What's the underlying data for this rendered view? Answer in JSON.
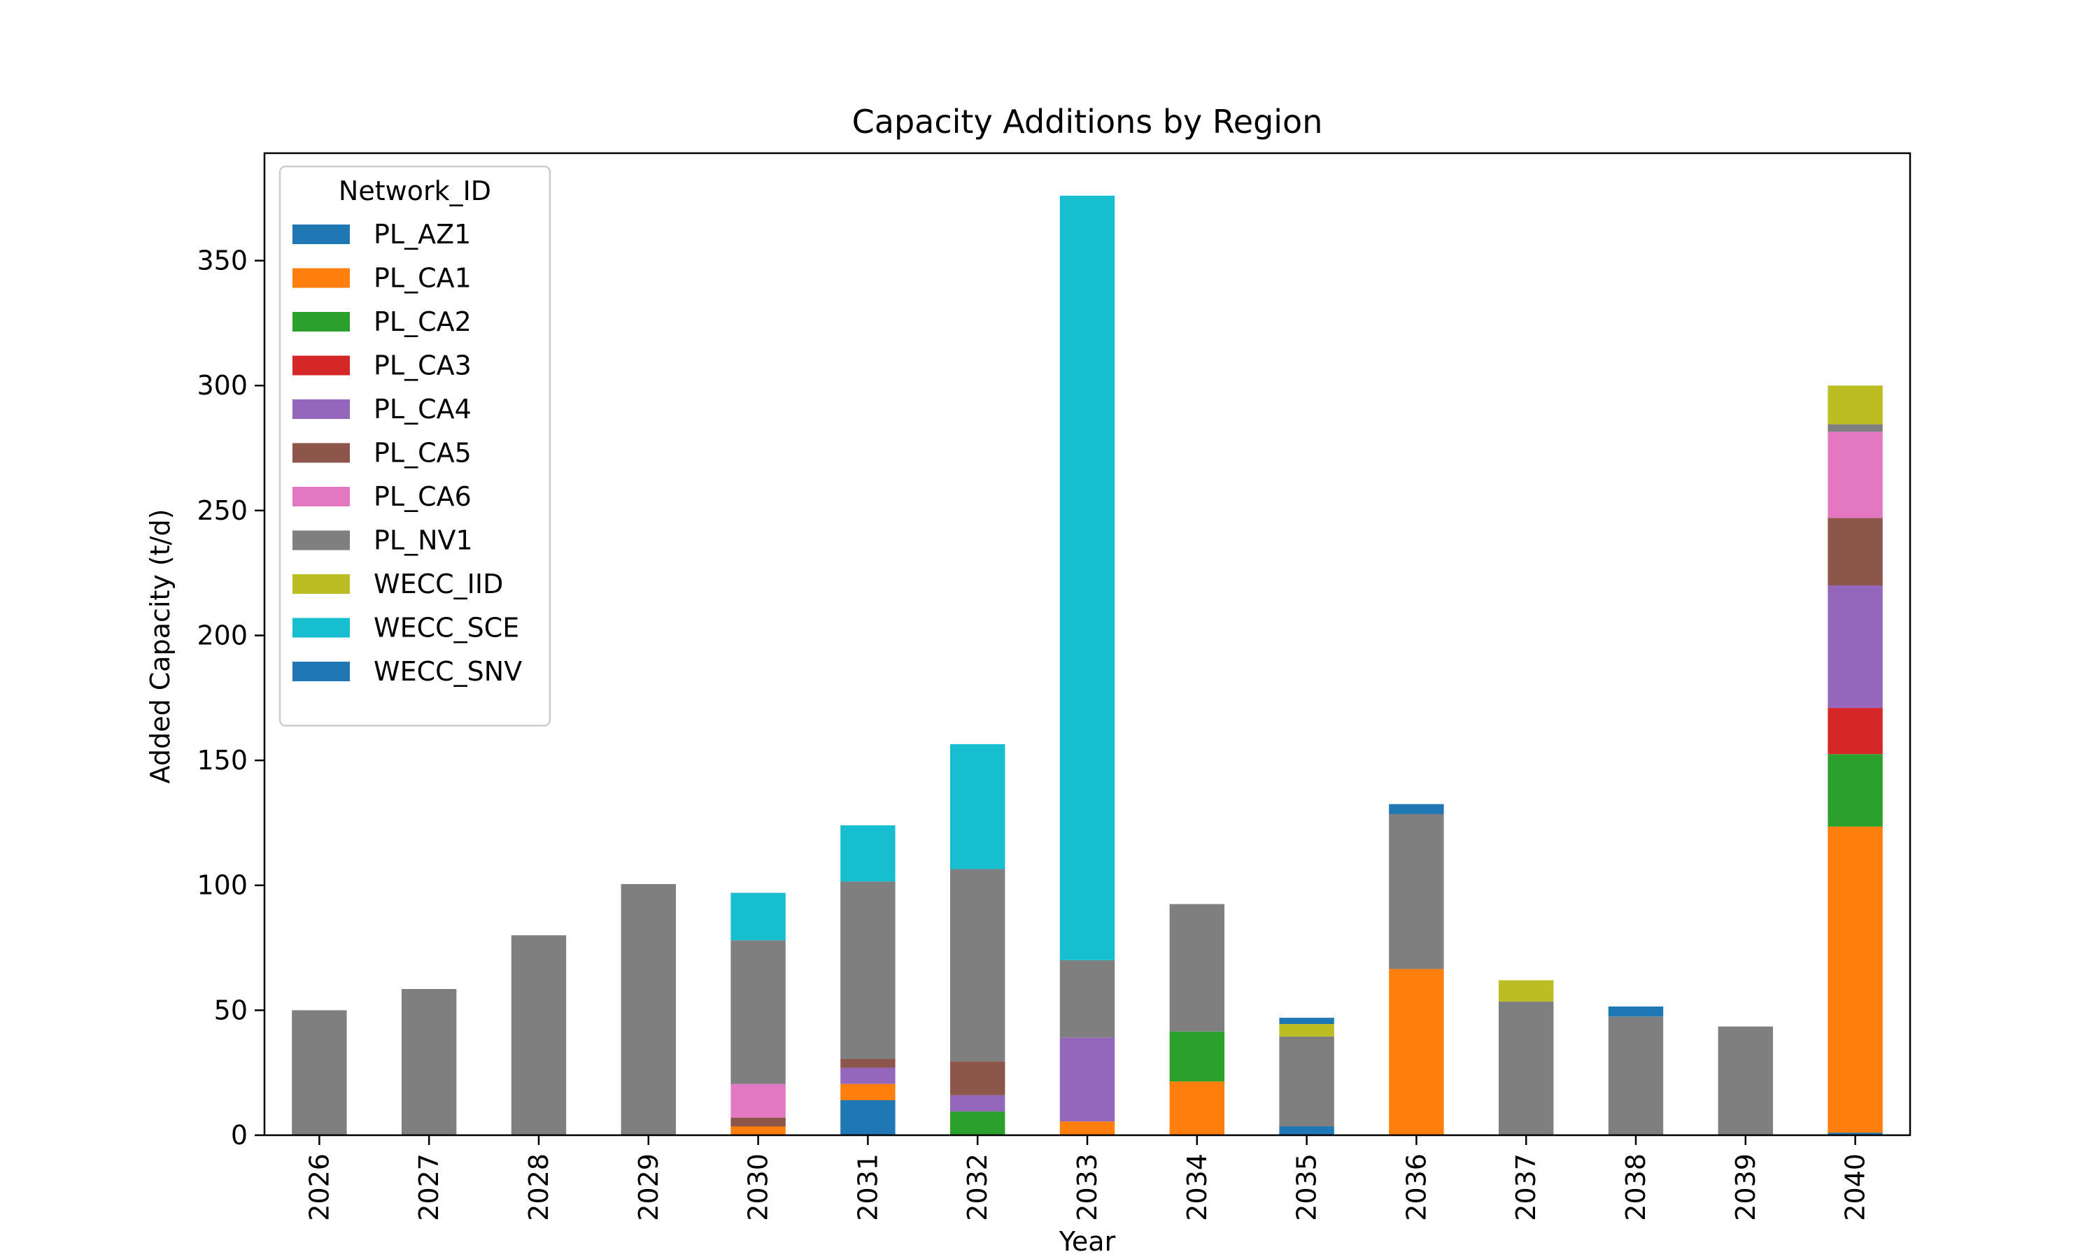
{
  "chart_data": {
    "type": "bar",
    "stacked": true,
    "title": "Capacity Additions by Region",
    "xlabel": "Year",
    "ylabel": "Added Capacity (t/d)",
    "ylim": [
      0,
      393
    ],
    "yticks": [
      0,
      50,
      100,
      150,
      200,
      250,
      300,
      350
    ],
    "grid": false,
    "legend": {
      "title": "Network_ID",
      "placement": "top-left"
    },
    "categories": [
      "2026",
      "2027",
      "2028",
      "2029",
      "2030",
      "2031",
      "2032",
      "2033",
      "2034",
      "2035",
      "2036",
      "2037",
      "2038",
      "2039",
      "2040"
    ],
    "series": [
      {
        "name": "PL_AZ1",
        "color": "#1f77b4",
        "values": [
          0,
          0,
          0,
          0,
          0,
          14,
          0,
          0,
          0,
          3.5,
          0,
          0,
          0,
          0,
          1
        ]
      },
      {
        "name": "PL_CA1",
        "color": "#ff7f0e",
        "values": [
          0,
          0,
          0,
          0,
          3.5,
          6.5,
          0,
          5.5,
          21.5,
          0,
          66.5,
          0,
          0,
          0,
          122.5
        ]
      },
      {
        "name": "PL_CA2",
        "color": "#2ca02c",
        "values": [
          0,
          0,
          0,
          0,
          0,
          0,
          9.5,
          0,
          20,
          0,
          0,
          0,
          0,
          0,
          29
        ]
      },
      {
        "name": "PL_CA3",
        "color": "#d62728",
        "values": [
          0,
          0,
          0,
          0,
          0,
          0,
          0,
          0,
          0,
          0,
          0,
          0,
          0,
          0,
          18.5
        ]
      },
      {
        "name": "PL_CA4",
        "color": "#9467bd",
        "values": [
          0,
          0,
          0,
          0,
          0,
          6.5,
          6.5,
          33.5,
          0,
          0,
          0,
          0,
          0,
          0,
          49
        ]
      },
      {
        "name": "PL_CA5",
        "color": "#8c564b",
        "values": [
          0,
          0,
          0,
          0,
          3.5,
          3.5,
          13.5,
          0,
          0,
          0,
          0,
          0,
          0,
          0,
          27
        ]
      },
      {
        "name": "PL_CA6",
        "color": "#e377c2",
        "values": [
          0,
          0,
          0,
          0,
          13.5,
          0,
          0,
          0,
          0,
          0,
          0,
          0,
          0,
          0,
          34.5
        ]
      },
      {
        "name": "PL_NV1",
        "color": "#7f7f7f",
        "values": [
          50,
          58.5,
          80,
          100.5,
          57.5,
          71,
          77,
          31,
          51,
          36,
          62,
          53.5,
          47.5,
          43.5,
          3
        ]
      },
      {
        "name": "WECC_IID",
        "color": "#bcbd22",
        "values": [
          0,
          0,
          0,
          0,
          0,
          0,
          0,
          0,
          0,
          5,
          0,
          8.5,
          0,
          0,
          15.5
        ]
      },
      {
        "name": "WECC_SCE",
        "color": "#17becf",
        "values": [
          0,
          0,
          0,
          0,
          19,
          22.5,
          50,
          306,
          0,
          0,
          0,
          0,
          0,
          0,
          0
        ]
      },
      {
        "name": "WECC_SNV",
        "color": "#1f77b4",
        "values": [
          0,
          0,
          0,
          0,
          0,
          0,
          0,
          0,
          0,
          2.5,
          4,
          0,
          4,
          0,
          0
        ]
      }
    ]
  }
}
